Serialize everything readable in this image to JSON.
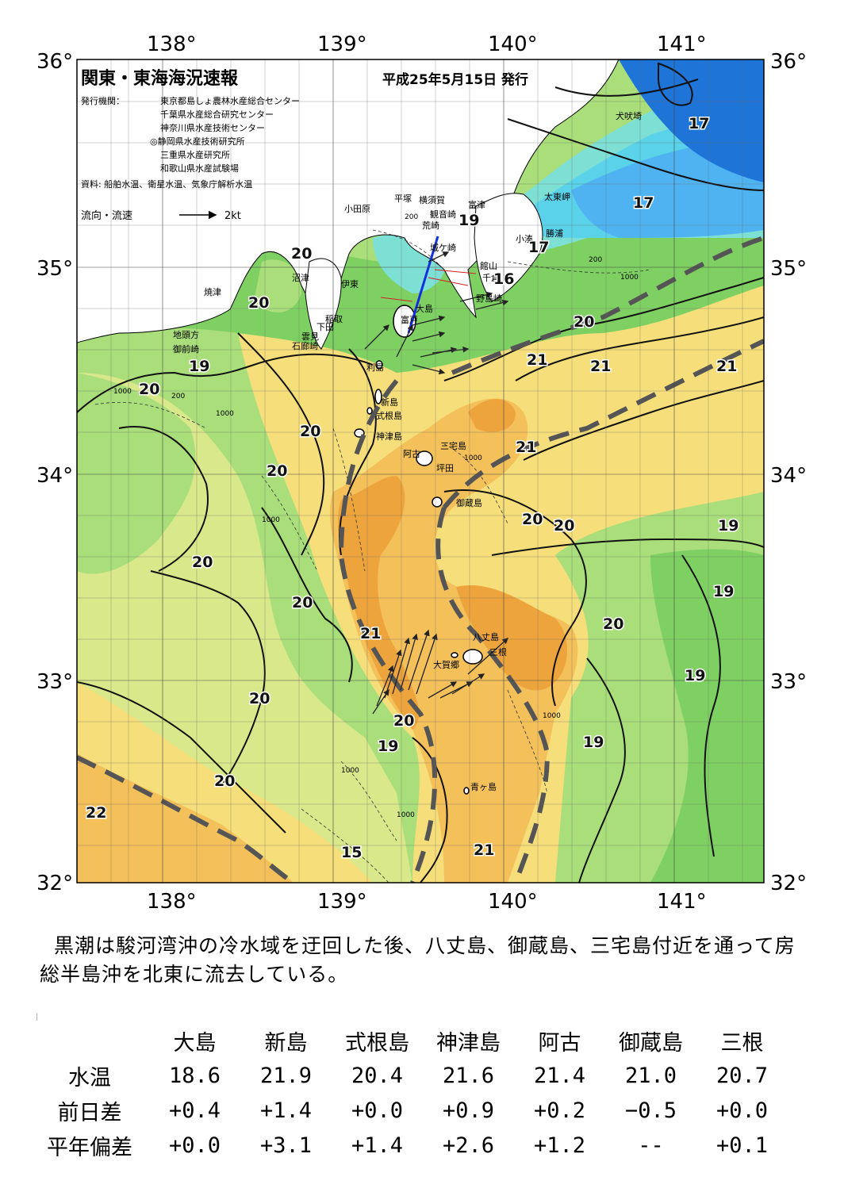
{
  "header": {
    "title": "関東・東海海況速報",
    "date": "平成25年5月15日 発行",
    "issuer_label": "発行機関：",
    "issuers": [
      "東京都島しょ農林水産総合センター",
      "千葉県水産総合研究センター",
      "神奈川県水産技術センター",
      "◎静岡県水産技術研究所",
      "三重県水産研究所",
      "和歌山県水産試験場"
    ],
    "source": "資料: 船舶水温、衛星水温、気象庁解析水温",
    "flow_legend": "流向・流速",
    "flow_unit": "2kt"
  },
  "axes": {
    "lon_labels_top": [
      "138°",
      "139°",
      "140°",
      "141°"
    ],
    "lon_labels_bottom": [
      "138°",
      "139°",
      "140°",
      "141°"
    ],
    "lat_labels_left": [
      "36°",
      "35°",
      "34°",
      "33°",
      "32°"
    ],
    "lat_labels_right": [
      "36°",
      "35°",
      "34°",
      "33°",
      "32°"
    ]
  },
  "places": [
    "犬吠埼",
    "太東岬",
    "勝浦",
    "小湊",
    "富津",
    "横須賀",
    "平塚",
    "小田原",
    "観音崎",
    "荒崎",
    "城ケ崎",
    "館山",
    "千倉",
    "野島崎",
    "沼津",
    "伊東",
    "焼津",
    "稲取",
    "下田",
    "雲見",
    "地頭方",
    "御前崎",
    "石廊崎",
    "大島",
    "利島",
    "新島",
    "式根島",
    "神津島",
    "三宅島",
    "阿古",
    "坪田",
    "御蔵島",
    "八丈島",
    "大賀郷",
    "三根",
    "青ヶ島",
    "富戸"
  ],
  "isotherm_labels": [
    "17",
    "17",
    "17",
    "19",
    "16",
    "20",
    "20",
    "19",
    "20",
    "20",
    "20",
    "21",
    "21",
    "21",
    "21",
    "20",
    "20",
    "20",
    "19",
    "20",
    "19",
    "21",
    "20",
    "20",
    "19",
    "20",
    "19",
    "19",
    "20",
    "22",
    "20",
    "21",
    "15"
  ],
  "depth_labels": [
    "200",
    "1000"
  ],
  "summary": "黒潮は駿河湾沖の冷水域を迂回した後、八丈島、御蔵島、三宅島付近を通って房総半島沖を北東に流去している。",
  "observations": {
    "columns": [
      "大島",
      "新島",
      "式根島",
      "神津島",
      "阿古",
      "御蔵島",
      "三根"
    ],
    "rows": [
      {
        "label": "水温",
        "values": [
          "18.6",
          "21.9",
          "20.4",
          "21.6",
          "21.4",
          "21.0",
          "20.7"
        ]
      },
      {
        "label": "前日差",
        "values": [
          "+0.4",
          "+1.4",
          "+0.0",
          "+0.9",
          "+0.2",
          "−0.5",
          "+0.0"
        ]
      },
      {
        "label": "平年偏差",
        "values": [
          "+0.0",
          "+3.1",
          "+1.4",
          "+2.6",
          "+1.2",
          "--",
          "+0.1"
        ]
      }
    ]
  },
  "colors": {
    "cold": "#1f74d8",
    "cool": "#4fb3f2",
    "cyan": "#5ad3ea",
    "aqua": "#7ee0d4",
    "green": "#7fd062",
    "lightgreen": "#a9de7a",
    "yellowgreen": "#d9e88a",
    "yellow": "#f6df7a",
    "lightorange": "#f3c05a",
    "orange": "#eea43c",
    "land": "#ffffff"
  }
}
